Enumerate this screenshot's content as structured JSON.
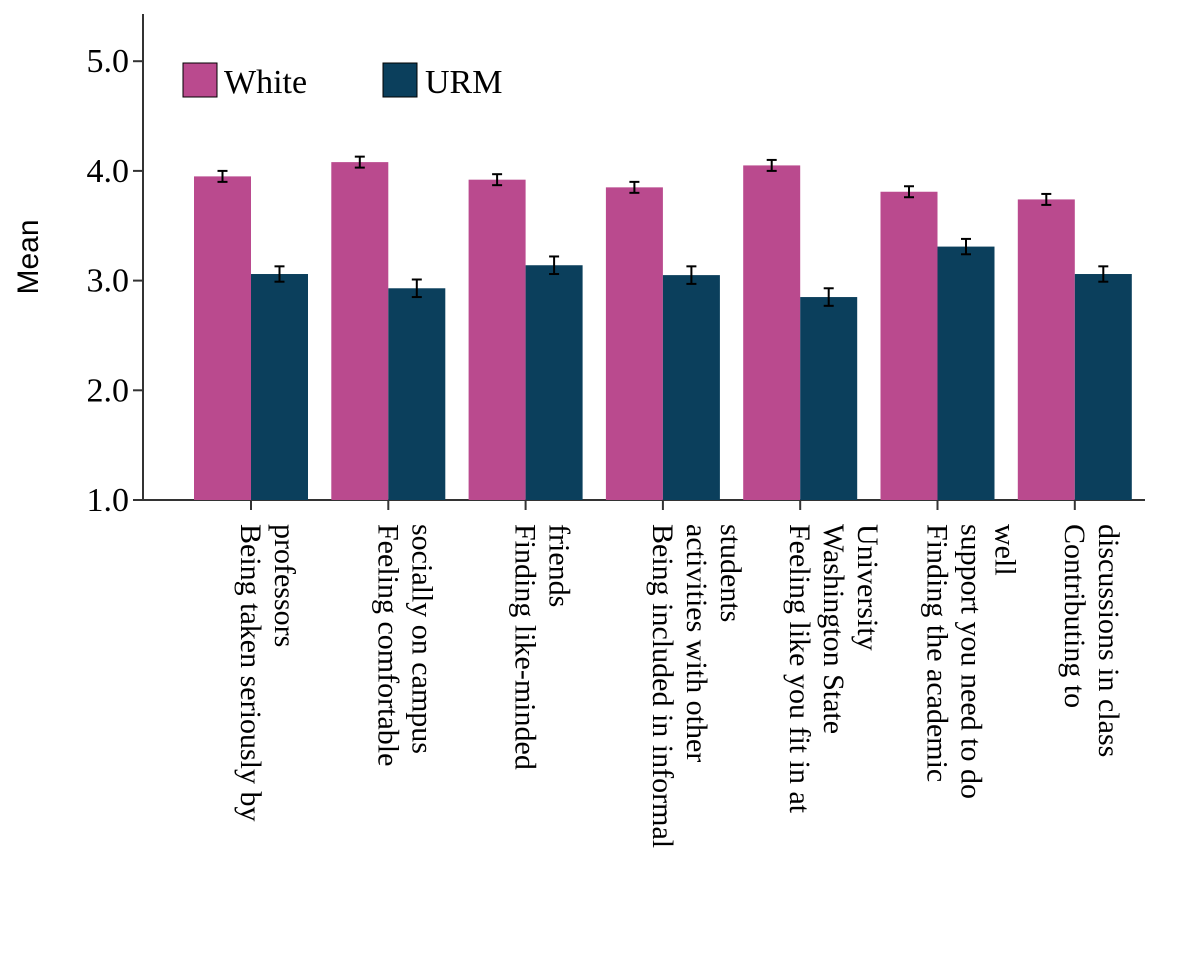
{
  "chart_data": {
    "type": "bar",
    "title": "",
    "xlabel": "",
    "ylabel": "Mean",
    "ylim": [
      1.0,
      5.4
    ],
    "yticks": [
      1.0,
      2.0,
      3.0,
      4.0,
      5.0
    ],
    "ytick_labels": [
      "1.0",
      "2.0",
      "3.0",
      "4.0",
      "5.0"
    ],
    "grid": false,
    "legend_position": "top-left",
    "categories": [
      [
        "Being taken seriously by",
        "professors"
      ],
      [
        "Feeling comfortable",
        "socially on campus"
      ],
      [
        "Finding like-minded",
        "friends"
      ],
      [
        "Being included in informal",
        "activities with other",
        "students"
      ],
      [
        "Feeling like you fit in at",
        "Washington State",
        "University"
      ],
      [
        "Finding the academic",
        "support you need to do",
        "well"
      ],
      [
        "Contributing to",
        "discussions in class"
      ]
    ],
    "series": [
      {
        "name": "White",
        "color": "#BA4A8E",
        "values": [
          3.95,
          4.08,
          3.92,
          3.85,
          4.05,
          3.81,
          3.74
        ],
        "error": [
          0.05,
          0.05,
          0.05,
          0.05,
          0.05,
          0.05,
          0.05
        ]
      },
      {
        "name": "URM",
        "color": "#0B3F5C",
        "values": [
          3.06,
          2.93,
          3.14,
          3.05,
          2.85,
          3.31,
          3.06
        ],
        "error": [
          0.07,
          0.08,
          0.08,
          0.08,
          0.08,
          0.07,
          0.07
        ]
      }
    ]
  }
}
